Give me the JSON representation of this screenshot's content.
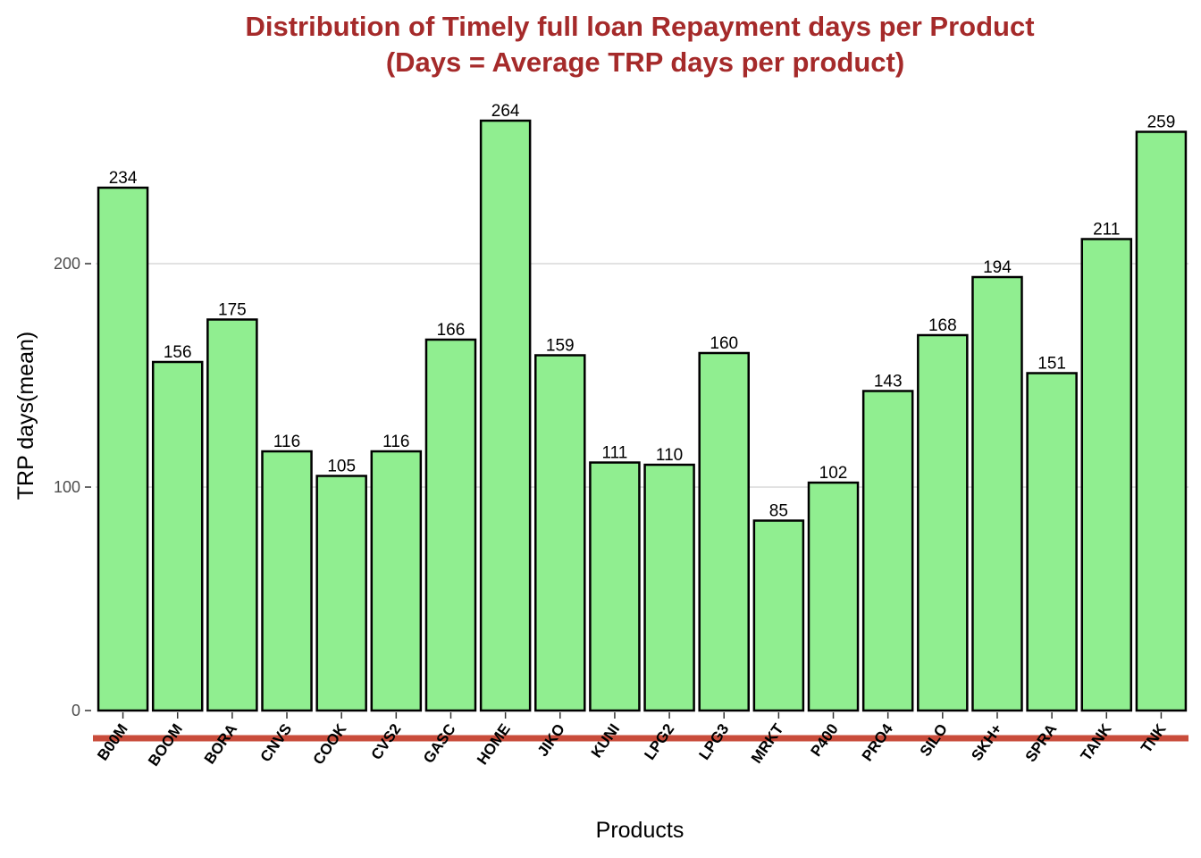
{
  "chart_data": {
    "type": "bar",
    "title": "Distribution of Timely full loan Repayment days per Product",
    "subtitle": "(Days = Average TRP days per product)",
    "xlabel": "Products",
    "ylabel": "TRP days(mean)",
    "categories": [
      "B00M",
      "BOOM",
      "BORA",
      "CNVS",
      "COOK",
      "CVS2",
      "GASC",
      "HOME",
      "JIKO",
      "KUNI",
      "LPG2",
      "LPG3",
      "MRKT",
      "P400",
      "PRO4",
      "SILO",
      "SKH+",
      "SPRA",
      "TANK",
      "TNK"
    ],
    "values": [
      234,
      156,
      175,
      116,
      105,
      116,
      166,
      264,
      159,
      111,
      110,
      160,
      85,
      102,
      143,
      168,
      194,
      151,
      211,
      259
    ],
    "data_labels": [
      "234",
      "156",
      "175",
      "116",
      "105",
      "116",
      "166",
      "264",
      "159",
      "111",
      "110",
      "160",
      "85",
      "102",
      "143",
      "168",
      "194",
      "151",
      "211",
      "259"
    ],
    "y_ticks": [
      0,
      100,
      200
    ],
    "y_tick_labels": [
      "0",
      "100",
      "200"
    ],
    "ylim": [
      0,
      264
    ],
    "grid": true,
    "legend": "none",
    "colors": {
      "bar_fill": "#90ee90",
      "bar_stroke": "#000000",
      "title": "#a52a2a",
      "gridline": "#d9d9d9",
      "x_axis_band": "#c94c3b",
      "tick_text": "#4d4d4d"
    }
  }
}
